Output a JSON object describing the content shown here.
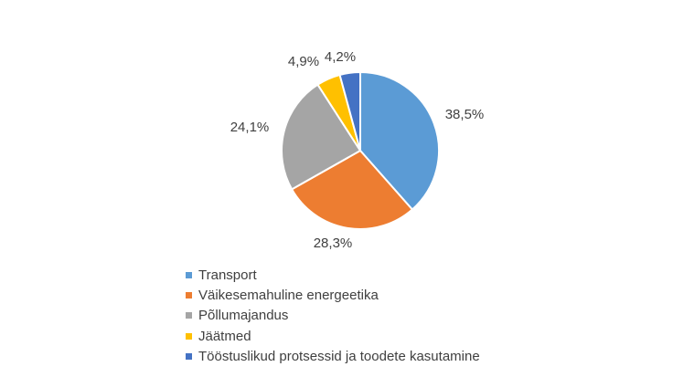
{
  "chart_data": {
    "type": "pie",
    "title": "",
    "categories": [
      "Transport",
      "Väikesemahuline energeetika",
      "Põllumajandus",
      "Jäätmed",
      "Tööstuslikud protsessid ja toodete kasutamine"
    ],
    "values": [
      38.5,
      28.3,
      24.1,
      4.9,
      4.2
    ],
    "value_labels": [
      "38,5%",
      "28,3%",
      "24,1%",
      "4,9%",
      "4,2%"
    ],
    "colors": [
      "#5B9BD5",
      "#ED7D31",
      "#A5A5A5",
      "#FFC000",
      "#4472C4"
    ],
    "legend_position": "bottom-left"
  }
}
